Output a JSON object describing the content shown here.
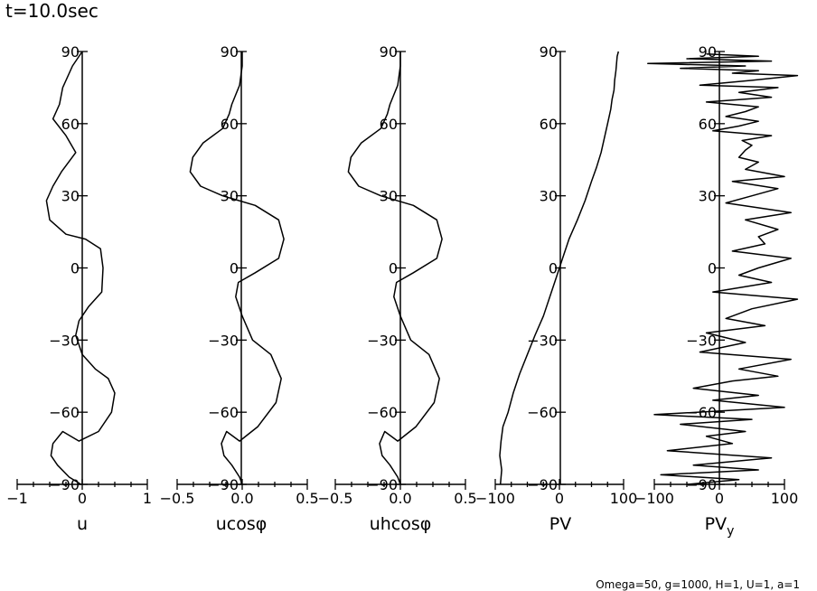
{
  "figure": {
    "title": "t=10.0sec",
    "footnote": "Omega=50, g=1000, H=1, U=1, a=1"
  },
  "chart_data": [
    {
      "type": "line",
      "xlabel": "u",
      "ylabel": "",
      "xlim": [
        -1,
        1
      ],
      "ylim": [
        -90,
        90
      ],
      "x_ticks": [
        -1,
        0,
        1
      ],
      "x_tick_labels": [
        "−1",
        "0",
        "1"
      ],
      "y_ticks": [
        -90,
        -60,
        -30,
        0,
        30,
        60,
        90
      ],
      "y_tick_labels": [
        "−90",
        "−60",
        "−30",
        "0",
        "30",
        "60",
        "90"
      ],
      "series": [
        {
          "name": "u",
          "x": [
            -0.02,
            -0.2,
            -0.38,
            -0.48,
            -0.45,
            -0.3,
            -0.05,
            0.25,
            0.45,
            0.5,
            0.4,
            0.2,
            0.0,
            -0.1,
            -0.05,
            0.1,
            0.3,
            0.32,
            0.28,
            0.05,
            -0.25,
            -0.5,
            -0.55,
            -0.45,
            -0.32,
            -0.1,
            -0.25,
            -0.45,
            -0.35,
            -0.3,
            -0.15,
            0.0
          ],
          "y": [
            -90,
            -87,
            -82,
            -78,
            -73,
            -68,
            -72,
            -68,
            -60,
            -52,
            -46,
            -42,
            -36,
            -28,
            -22,
            -16,
            -10,
            0,
            8,
            12,
            14,
            20,
            28,
            34,
            40,
            48,
            55,
            62,
            68,
            75,
            84,
            90
          ]
        }
      ]
    },
    {
      "type": "line",
      "xlabel": "ucosφ",
      "ylabel": "",
      "xlim": [
        -0.5,
        0.5
      ],
      "ylim": [
        -90,
        90
      ],
      "x_ticks": [
        -0.5,
        0.0,
        0.5
      ],
      "x_tick_labels": [
        "−0.5",
        "0.0",
        "0.5"
      ],
      "y_ticks": [
        -90,
        -60,
        -30,
        0,
        30,
        60,
        90
      ],
      "y_tick_labels": [
        "−90",
        "−60",
        "−30",
        "0",
        "30",
        "60",
        "90"
      ],
      "series": [
        {
          "name": "ucosφ",
          "x": [
            0.0,
            -0.02,
            -0.08,
            -0.14,
            -0.16,
            -0.12,
            -0.02,
            0.12,
            0.26,
            0.3,
            0.22,
            0.08,
            0.0,
            -0.05,
            -0.03,
            0.1,
            0.28,
            0.32,
            0.28,
            0.1,
            -0.15,
            -0.32,
            -0.4,
            -0.38,
            -0.3,
            -0.15,
            -0.1,
            -0.08,
            -0.05,
            -0.02,
            0.0,
            0.0
          ],
          "y": [
            -90,
            -87,
            -82,
            -78,
            -73,
            -68,
            -72,
            -66,
            -56,
            -46,
            -36,
            -30,
            -20,
            -12,
            -6,
            -2,
            4,
            12,
            20,
            26,
            30,
            34,
            40,
            46,
            52,
            58,
            64,
            68,
            72,
            76,
            84,
            90
          ]
        }
      ]
    },
    {
      "type": "line",
      "xlabel": "uhcosφ",
      "ylabel": "",
      "xlim": [
        -0.5,
        0.5
      ],
      "ylim": [
        -90,
        90
      ],
      "x_ticks": [
        -0.5,
        0.0,
        0.5
      ],
      "x_tick_labels": [
        "−0.5",
        "0.0",
        "0.5"
      ],
      "y_ticks": [
        -90,
        -60,
        -30,
        0,
        30,
        60,
        90
      ],
      "y_tick_labels": [
        "−90",
        "−60",
        "−30",
        "0",
        "30",
        "60",
        "90"
      ],
      "series": [
        {
          "name": "uhcosφ",
          "x": [
            0.0,
            -0.02,
            -0.08,
            -0.14,
            -0.16,
            -0.12,
            -0.02,
            0.12,
            0.26,
            0.3,
            0.22,
            0.08,
            0.0,
            -0.05,
            -0.03,
            0.1,
            0.28,
            0.32,
            0.28,
            0.1,
            -0.15,
            -0.32,
            -0.4,
            -0.38,
            -0.3,
            -0.15,
            -0.1,
            -0.08,
            -0.05,
            -0.02,
            0.0,
            0.0
          ],
          "y": [
            -90,
            -87,
            -82,
            -78,
            -73,
            -68,
            -72,
            -66,
            -56,
            -46,
            -36,
            -30,
            -20,
            -12,
            -6,
            -2,
            4,
            12,
            20,
            26,
            30,
            34,
            40,
            46,
            52,
            58,
            64,
            68,
            72,
            76,
            84,
            90
          ]
        }
      ]
    },
    {
      "type": "line",
      "xlabel": "PV",
      "ylabel": "",
      "xlim": [
        -100,
        100
      ],
      "ylim": [
        -90,
        90
      ],
      "x_ticks": [
        -100,
        0,
        100
      ],
      "x_tick_labels": [
        "−100",
        "0",
        "100"
      ],
      "y_ticks": [
        -90,
        -60,
        -30,
        0,
        30,
        60,
        90
      ],
      "y_tick_labels": [
        "−90",
        "−60",
        "−30",
        "0",
        "30",
        "60",
        "90"
      ],
      "series": [
        {
          "name": "PV",
          "x": [
            -92,
            -90,
            -93,
            -91,
            -88,
            -80,
            -72,
            -62,
            -50,
            -38,
            -25,
            -15,
            -5,
            5,
            15,
            28,
            40,
            50,
            58,
            65,
            70,
            75,
            80,
            82,
            85,
            86,
            88,
            89,
            90,
            92
          ],
          "y": [
            -90,
            -84,
            -78,
            -72,
            -66,
            -60,
            -52,
            -44,
            -36,
            -28,
            -20,
            -12,
            -4,
            4,
            12,
            20,
            28,
            36,
            42,
            48,
            54,
            60,
            66,
            70,
            74,
            78,
            82,
            85,
            88,
            90
          ]
        }
      ]
    },
    {
      "type": "line",
      "xlabel": "PVy",
      "ylabel": "",
      "xlim": [
        -100,
        100
      ],
      "ylim": [
        -90,
        90
      ],
      "x_ticks": [
        -100,
        0,
        100
      ],
      "x_tick_labels": [
        "−100",
        "0",
        "100"
      ],
      "y_ticks": [
        -90,
        -60,
        -30,
        0,
        30,
        60,
        90
      ],
      "y_tick_labels": [
        "−90",
        "−60",
        "−30",
        "0",
        "30",
        "60",
        "90"
      ],
      "series": [
        {
          "name": "PVy",
          "x": [
            -50,
            30,
            -90,
            60,
            -40,
            80,
            -80,
            20,
            -20,
            40,
            -60,
            50,
            -100,
            100,
            -10,
            60,
            -40,
            20,
            90,
            30,
            110,
            -30,
            40,
            -20,
            70,
            10,
            50,
            120,
            -10,
            80,
            30,
            60,
            110,
            20,
            70,
            60,
            90,
            40,
            110,
            10,
            50,
            90,
            20,
            100,
            40,
            60,
            30,
            40,
            50,
            35,
            80,
            -10,
            30,
            60,
            10,
            40,
            60,
            -20,
            80,
            30,
            90,
            -30,
            50,
            120,
            20,
            60,
            -60,
            40,
            -110,
            80,
            -50,
            60,
            -20
          ],
          "y": [
            -90,
            -88,
            -86,
            -84,
            -82,
            -79,
            -76,
            -73,
            -70,
            -68,
            -65,
            -63,
            -61,
            -58,
            -55,
            -53,
            -50,
            -47,
            -45,
            -42,
            -38,
            -35,
            -31,
            -27,
            -24,
            -21,
            -17,
            -13,
            -10,
            -6,
            -3,
            0,
            4,
            7,
            10,
            13,
            16,
            20,
            23,
            27,
            30,
            33,
            36,
            38,
            41,
            44,
            46,
            49,
            51,
            53,
            55,
            57,
            59,
            61,
            63,
            65,
            67,
            69,
            71,
            73,
            75,
            76,
            78,
            80,
            81,
            82,
            83,
            84,
            85,
            86,
            87,
            88,
            89
          ]
        }
      ]
    }
  ]
}
